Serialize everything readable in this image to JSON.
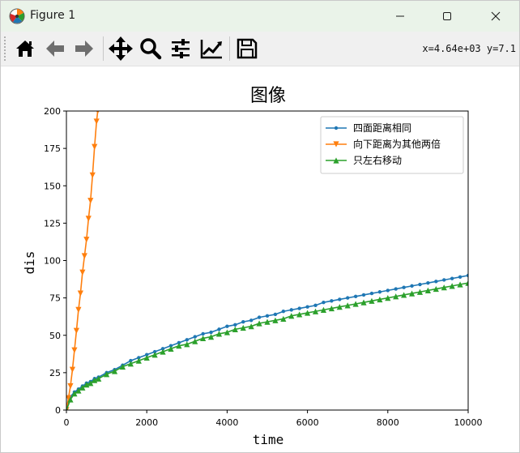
{
  "window": {
    "title": "Figure 1",
    "controls": {
      "minimize": "minimize",
      "maximize": "maximize",
      "close": "close"
    }
  },
  "toolbar": {
    "tools": [
      {
        "name": "home",
        "icon": "home-icon"
      },
      {
        "name": "back",
        "icon": "arrow-left-icon"
      },
      {
        "name": "forward",
        "icon": "arrow-right-icon"
      },
      {
        "name": "pan",
        "icon": "move-icon"
      },
      {
        "name": "zoom",
        "icon": "magnifier-icon"
      },
      {
        "name": "configure-subplots",
        "icon": "sliders-icon"
      },
      {
        "name": "edit-axis",
        "icon": "chart-line-icon"
      },
      {
        "name": "save",
        "icon": "floppy-disk-icon"
      }
    ],
    "coords_readout": "x=4.64e+03 y=7.1"
  },
  "chart_data": {
    "type": "line",
    "title": "图像",
    "xlabel": "time",
    "ylabel": "dis",
    "xlim": [
      0,
      10000
    ],
    "ylim": [
      0,
      200
    ],
    "xticks": [
      0,
      2000,
      4000,
      6000,
      8000,
      10000
    ],
    "yticks": [
      0,
      25,
      50,
      75,
      100,
      125,
      150,
      175,
      200
    ],
    "legend_position": "top-right",
    "grid": false,
    "series": [
      {
        "name": "四面距离相同",
        "color": "#1f77b4",
        "marker": "circle",
        "x": [
          0,
          100,
          200,
          300,
          400,
          500,
          600,
          700,
          800,
          1000,
          1200,
          1400,
          1600,
          1800,
          2000,
          2200,
          2400,
          2600,
          2800,
          3000,
          3200,
          3400,
          3600,
          3800,
          4000,
          4200,
          4400,
          4600,
          4800,
          5000,
          5200,
          5400,
          5600,
          5800,
          6000,
          6200,
          6400,
          6600,
          6800,
          7000,
          7200,
          7400,
          7600,
          7800,
          8000,
          8200,
          8400,
          8600,
          8800,
          9000,
          9200,
          9400,
          9600,
          9800,
          10000
        ],
        "y": [
          0,
          9,
          12,
          14,
          16,
          18,
          19,
          21,
          22,
          25,
          27,
          30,
          33,
          35,
          37,
          39,
          41,
          43,
          45,
          47,
          49,
          51,
          52,
          54,
          56,
          57,
          59,
          60,
          62,
          63,
          64,
          66,
          67,
          68,
          69,
          70,
          72,
          73,
          74,
          75,
          76,
          77,
          78,
          79,
          80,
          81,
          82,
          83,
          84,
          85,
          86,
          87,
          88,
          89,
          90
        ]
      },
      {
        "name": "向下距离为其他两倍",
        "color": "#ff7f0e",
        "marker": "triangle-down",
        "x": [
          0,
          50,
          100,
          150,
          200,
          250,
          300,
          350,
          400,
          450,
          500,
          550,
          600,
          650,
          700,
          750,
          780
        ],
        "y": [
          0,
          8,
          16,
          27,
          40,
          53,
          67,
          78,
          92,
          103,
          114,
          128,
          140,
          157,
          176,
          193,
          200
        ]
      },
      {
        "name": "只左右移动",
        "color": "#2ca02c",
        "marker": "triangle-up",
        "x": [
          0,
          100,
          200,
          300,
          400,
          500,
          600,
          700,
          800,
          1000,
          1200,
          1400,
          1600,
          1800,
          2000,
          2200,
          2400,
          2600,
          2800,
          3000,
          3200,
          3400,
          3600,
          3800,
          4000,
          4200,
          4400,
          4600,
          4800,
          5000,
          5200,
          5400,
          5600,
          5800,
          6000,
          6200,
          6400,
          6600,
          6800,
          7000,
          7200,
          7400,
          7600,
          7800,
          8000,
          8200,
          8400,
          8600,
          8800,
          9000,
          9200,
          9400,
          9600,
          9800,
          10000
        ],
        "y": [
          0,
          7,
          11,
          13,
          15,
          17,
          18,
          20,
          21,
          24,
          26,
          29,
          31,
          33,
          35,
          37,
          39,
          41,
          43,
          44,
          46,
          48,
          49,
          51,
          52,
          54,
          55,
          56,
          58,
          59,
          60,
          61,
          63,
          64,
          65,
          66,
          67,
          68,
          69,
          70,
          71,
          72,
          73,
          74,
          75,
          76,
          77,
          78,
          79,
          80,
          81,
          82,
          83,
          84,
          85
        ]
      }
    ]
  }
}
